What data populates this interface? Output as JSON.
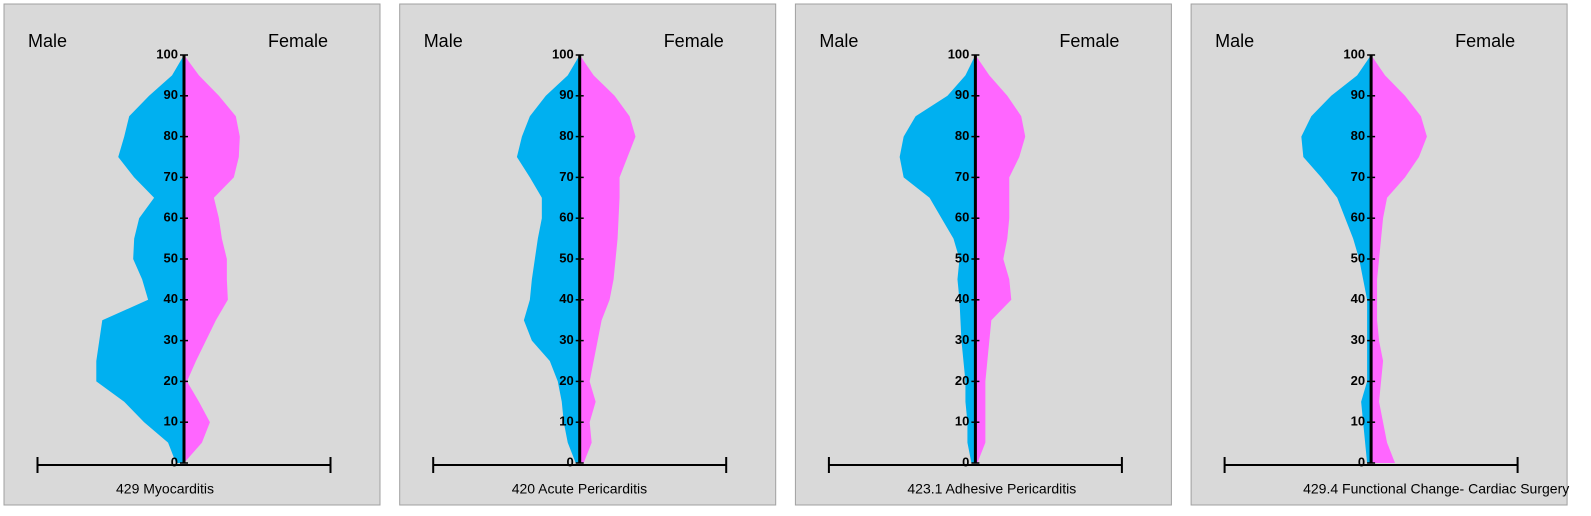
{
  "chart_data": [
    {
      "type": "pyramid",
      "title": "429  Myocarditis",
      "x": [
        0,
        5,
        10,
        15,
        20,
        25,
        30,
        35,
        40,
        45,
        50,
        55,
        60,
        65,
        70,
        75,
        80,
        85,
        90,
        95,
        100
      ],
      "series": [
        {
          "name": "Male",
          "color": "#00b0f0",
          "values": [
            8,
            16,
            40,
            60,
            88,
            88,
            85,
            82,
            36,
            42,
            51,
            50,
            45,
            30,
            50,
            66,
            60,
            55,
            35,
            12,
            0
          ]
        },
        {
          "name": "Female",
          "color": "#ff66ff",
          "values": [
            0,
            18,
            26,
            15,
            3,
            12,
            22,
            32,
            44,
            43,
            43,
            38,
            35,
            30,
            50,
            55,
            56,
            52,
            35,
            15,
            0
          ]
        }
      ],
      "xlim": [
        -147,
        147
      ],
      "ylim": [
        0,
        100
      ],
      "yticks": [
        0,
        10,
        20,
        30,
        40,
        50,
        60,
        70,
        80,
        90,
        100
      ]
    },
    {
      "type": "pyramid",
      "title": "420 Acute Pericarditis",
      "x": [
        0,
        5,
        10,
        15,
        20,
        25,
        30,
        35,
        40,
        45,
        50,
        55,
        60,
        65,
        70,
        75,
        80,
        85,
        90,
        95,
        100
      ],
      "series": [
        {
          "name": "Male",
          "color": "#00b0f0",
          "values": [
            4,
            12,
            16,
            18,
            22,
            30,
            48,
            56,
            50,
            48,
            45,
            42,
            38,
            38,
            50,
            63,
            58,
            50,
            34,
            12,
            0
          ]
        },
        {
          "name": "Female",
          "color": "#ff66ff",
          "values": [
            4,
            12,
            10,
            16,
            10,
            14,
            18,
            22,
            30,
            34,
            36,
            38,
            39,
            40,
            40,
            48,
            56,
            50,
            35,
            14,
            0
          ]
        }
      ],
      "xlim": [
        -147,
        147
      ],
      "ylim": [
        0,
        100
      ],
      "yticks": [
        0,
        10,
        20,
        30,
        40,
        50,
        60,
        70,
        80,
        90,
        100
      ]
    },
    {
      "type": "pyramid",
      "title": "423.1 Adhesive Pericarditis",
      "x": [
        0,
        5,
        10,
        15,
        20,
        25,
        30,
        35,
        40,
        45,
        50,
        55,
        60,
        65,
        70,
        75,
        80,
        85,
        90,
        95,
        100
      ],
      "series": [
        {
          "name": "Male",
          "color": "#00b0f0",
          "values": [
            4,
            8,
            8,
            10,
            10,
            12,
            14,
            15,
            16,
            18,
            16,
            22,
            34,
            46,
            72,
            76,
            72,
            60,
            28,
            10,
            0
          ]
        },
        {
          "name": "Female",
          "color": "#ff66ff",
          "values": [
            2,
            10,
            10,
            10,
            10,
            12,
            14,
            16,
            36,
            34,
            28,
            32,
            34,
            34,
            34,
            44,
            50,
            46,
            32,
            14,
            0
          ]
        }
      ],
      "xlim": [
        -147,
        147
      ],
      "ylim": [
        0,
        100
      ],
      "yticks": [
        0,
        10,
        20,
        30,
        40,
        50,
        60,
        70,
        80,
        90,
        100
      ]
    },
    {
      "type": "pyramid",
      "title": "429.4  Functional Change- Cardiac Surgery",
      "x": [
        0,
        5,
        10,
        15,
        20,
        25,
        30,
        35,
        40,
        45,
        50,
        55,
        60,
        65,
        70,
        75,
        80,
        85,
        90,
        95,
        100
      ],
      "series": [
        {
          "name": "Male",
          "color": "#00b0f0",
          "values": [
            4,
            6,
            8,
            10,
            4,
            4,
            4,
            4,
            4,
            8,
            12,
            18,
            26,
            34,
            50,
            68,
            70,
            60,
            40,
            14,
            0
          ]
        },
        {
          "name": "Female",
          "color": "#ff66ff",
          "values": [
            24,
            16,
            12,
            8,
            10,
            12,
            8,
            6,
            6,
            6,
            8,
            10,
            12,
            16,
            34,
            48,
            56,
            50,
            34,
            14,
            0
          ]
        }
      ],
      "xlim": [
        -147,
        147
      ],
      "ylim": [
        0,
        100
      ],
      "yticks": [
        0,
        10,
        20,
        30,
        40,
        50,
        60,
        70,
        80,
        90,
        100
      ]
    }
  ]
}
